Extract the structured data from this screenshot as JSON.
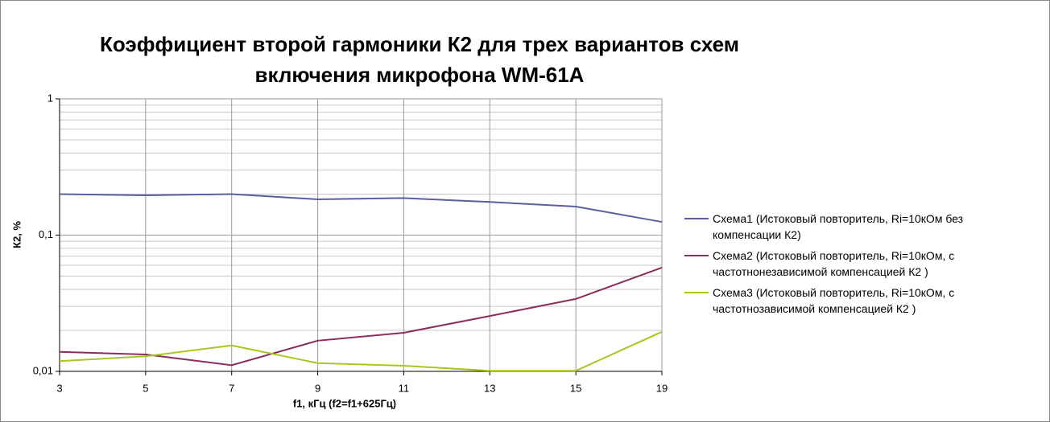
{
  "chart_data": {
    "type": "line",
    "title": "Коэффициент второй гармоники К2 для трех вариантов схем включения микрофона WM-61A",
    "x_label": "f1, кГц (f2=f1+625Гц)",
    "y_label": "К2, %",
    "categories": [
      "3",
      "5",
      "7",
      "9",
      "11",
      "13",
      "15",
      "19"
    ],
    "log_y": true,
    "grid": true,
    "minor_grid": true,
    "ylim": [
      0.01,
      1
    ],
    "yticks": [
      {
        "value": 0.01,
        "label": "0,01"
      },
      {
        "value": 0.1,
        "label": "0,1"
      },
      1
    ],
    "legend": "right",
    "series": [
      {
        "name": "Схема1 (Истоковый повторитель, Ri=10кОм без компенсации К2)",
        "color": "#5b5fa0",
        "values": [
          0.2,
          0.196,
          0.2,
          0.183,
          0.187,
          0.175,
          0.162,
          0.125
        ]
      },
      {
        "name": "Схема2 (Истоковый повторитель, Ri=10кОм, с частотнонезависимой компенсацией К2 )",
        "color": "#8c2b5c",
        "values": [
          0.0139,
          0.0133,
          0.0111,
          0.0168,
          0.0192,
          0.0255,
          0.034,
          0.0577
        ]
      },
      {
        "name": "Схема3 (Истоковый повторитель, Ri=10кОм, с частотнозависимой компенсацией К2 )",
        "color": "#a6c81e",
        "values": [
          0.0119,
          0.0129,
          0.0155,
          0.0115,
          0.011,
          0.0101,
          0.0101,
          0.0195
        ]
      }
    ]
  }
}
